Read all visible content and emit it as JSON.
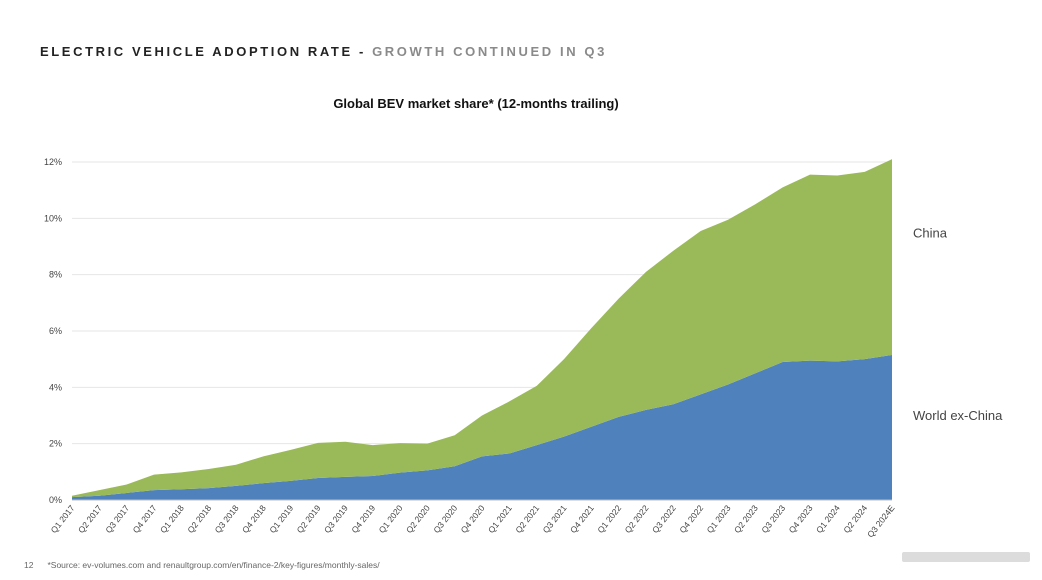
{
  "header": {
    "title_main": "ELECTRIC VEHICLE ADOPTION RATE",
    "title_sep": " - ",
    "title_sub": "GROWTH CONTINUED IN Q3"
  },
  "footer": {
    "page_number": "12",
    "source": "*Source: ev-volumes.com and renaultgroup.com/en/finance-2/key-figures/monthly-sales/"
  },
  "colors": {
    "china": "#9aba59",
    "world_ex_china": "#4f81bd",
    "grid": "#e6e6e6"
  },
  "chart_data": {
    "type": "area",
    "stacked": true,
    "title": "Global BEV market share* (12-months trailing)",
    "ylim": [
      0,
      12
    ],
    "yticks": [
      0,
      2,
      4,
      6,
      8,
      10,
      12
    ],
    "ytick_labels": [
      "0%",
      "2%",
      "4%",
      "6%",
      "8%",
      "10%",
      "12%"
    ],
    "grid": true,
    "legend": "right-side direct labels",
    "categories": [
      "Q1 2017",
      "Q2 2017",
      "Q3 2017",
      "Q4 2017",
      "Q1 2018",
      "Q2 2018",
      "Q3 2018",
      "Q4 2018",
      "Q1 2019",
      "Q2 2019",
      "Q3 2019",
      "Q4 2019",
      "Q1 2020",
      "Q2 2020",
      "Q3 2020",
      "Q4 2020",
      "Q1 2021",
      "Q2 2021",
      "Q3 2021",
      "Q4 2021",
      "Q1 2022",
      "Q2 2022",
      "Q3 2022",
      "Q4 2022",
      "Q1 2023",
      "Q2 2023",
      "Q3 2023",
      "Q4 2023",
      "Q1 2024",
      "Q2 2024",
      "Q3 2024E"
    ],
    "series": [
      {
        "name": "World ex-China",
        "values": [
          0.1,
          0.15,
          0.25,
          0.35,
          0.38,
          0.42,
          0.5,
          0.6,
          0.68,
          0.78,
          0.82,
          0.85,
          0.97,
          1.05,
          1.2,
          1.55,
          1.65,
          1.95,
          2.25,
          2.6,
          2.95,
          3.2,
          3.4,
          3.75,
          4.1,
          4.5,
          4.9,
          4.95,
          4.92,
          5.0,
          5.15
        ]
      },
      {
        "name": "China",
        "values": [
          0.05,
          0.2,
          0.3,
          0.55,
          0.6,
          0.68,
          0.75,
          0.95,
          1.1,
          1.25,
          1.25,
          1.1,
          1.05,
          0.95,
          1.1,
          1.45,
          1.85,
          2.1,
          2.75,
          3.5,
          4.2,
          4.9,
          5.45,
          5.8,
          5.85,
          6.0,
          6.2,
          6.6,
          6.6,
          6.65,
          6.95
        ]
      }
    ]
  }
}
